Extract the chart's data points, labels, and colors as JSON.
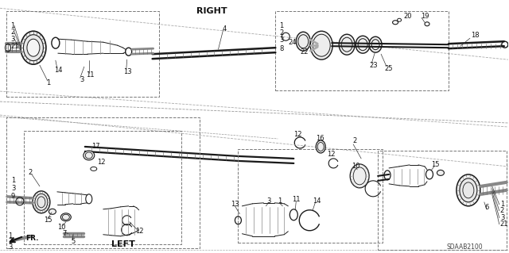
{
  "bg_color": "#ffffff",
  "fig_width": 6.4,
  "fig_height": 3.19,
  "dpi": 100,
  "diagram_code": "SDAAB2100",
  "right_label": "RIGHT",
  "left_label": "LEFT",
  "fr_label": "FR.",
  "lc": "#1a1a1a",
  "tc": "#111111",
  "dc": "#999999",
  "gray": "#888888"
}
